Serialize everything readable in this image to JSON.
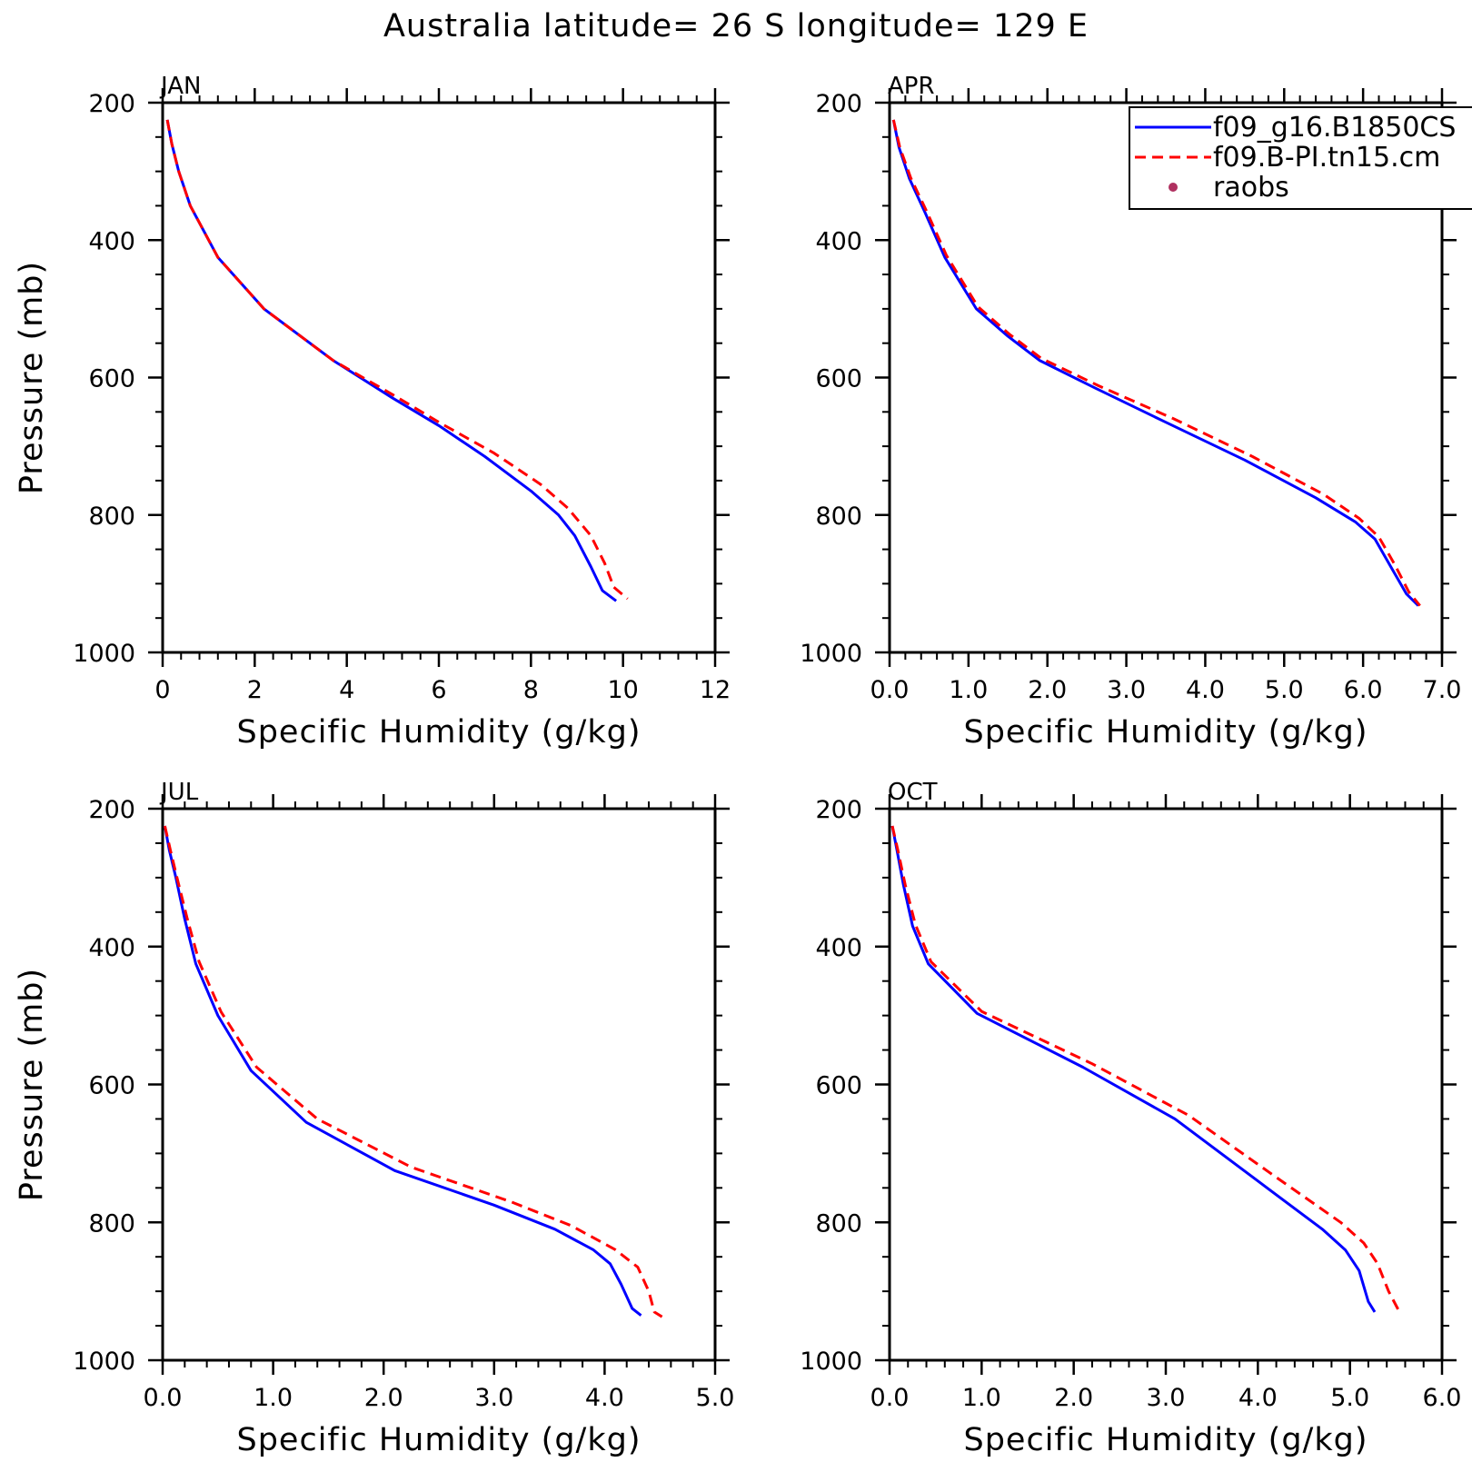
{
  "figure": {
    "title": "Australia  latitude= 26 S longitude= 129 E"
  },
  "colors": {
    "model1": "#0000ff",
    "model2": "#ff0000",
    "raobs": "#b03060"
  },
  "legend": {
    "placement": "top-right of APR panel",
    "entries": [
      {
        "label": "f09_g16.B1850CS",
        "style": "solid",
        "color": "#0000ff"
      },
      {
        "label": "f09.B-PI.tn15.cm",
        "style": "dashed",
        "color": "#ff0000"
      },
      {
        "label": "raobs",
        "style": "dot",
        "color": "#b03060"
      }
    ]
  },
  "chart_data": [
    {
      "type": "line",
      "panel": "JAN",
      "xlabel": "Specific Humidity (g/kg)",
      "ylabel": "Pressure (mb)",
      "xlim": [
        0,
        12
      ],
      "ylim": [
        200,
        1000
      ],
      "y_inverted": true,
      "xticks": [
        "0",
        "2",
        "4",
        "6",
        "8",
        "10",
        "12"
      ],
      "xtick_values": [
        0,
        2,
        4,
        6,
        8,
        10,
        12
      ],
      "yticks": [
        "200",
        "400",
        "600",
        "800",
        "1000"
      ],
      "ytick_values": [
        200,
        400,
        600,
        800,
        1000
      ],
      "series": [
        {
          "name": "f09_g16.B1850CS",
          "style": "solid",
          "points": [
            [
              0.1,
              225
            ],
            [
              0.2,
              260
            ],
            [
              0.35,
              300
            ],
            [
              0.6,
              350
            ],
            [
              1.2,
              425
            ],
            [
              2.2,
              500
            ],
            [
              3.7,
              575
            ],
            [
              5.0,
              630
            ],
            [
              6.0,
              670
            ],
            [
              7.0,
              715
            ],
            [
              8.0,
              765
            ],
            [
              8.6,
              800
            ],
            [
              8.95,
              830
            ],
            [
              9.3,
              875
            ],
            [
              9.55,
              910
            ],
            [
              9.85,
              925
            ]
          ]
        },
        {
          "name": "f09.B-PI.tn15.cm",
          "style": "dashed",
          "points": [
            [
              0.1,
              225
            ],
            [
              0.2,
              260
            ],
            [
              0.35,
              300
            ],
            [
              0.6,
              350
            ],
            [
              1.2,
              425
            ],
            [
              2.2,
              500
            ],
            [
              3.7,
              575
            ],
            [
              5.0,
              625
            ],
            [
              6.0,
              665
            ],
            [
              7.2,
              710
            ],
            [
              8.2,
              755
            ],
            [
              8.8,
              790
            ],
            [
              9.3,
              830
            ],
            [
              9.6,
              870
            ],
            [
              9.8,
              905
            ],
            [
              10.1,
              922
            ]
          ]
        },
        {
          "name": "raobs",
          "style": "dot",
          "points": []
        }
      ]
    },
    {
      "type": "line",
      "panel": "APR",
      "xlabel": "Specific Humidity (g/kg)",
      "ylabel": "",
      "xlim": [
        0,
        7
      ],
      "ylim": [
        200,
        1000
      ],
      "y_inverted": true,
      "xticks": [
        "0.0",
        "1.0",
        "2.0",
        "3.0",
        "4.0",
        "5.0",
        "6.0",
        "7.0"
      ],
      "xtick_values": [
        0,
        1,
        2,
        3,
        4,
        5,
        6,
        7
      ],
      "yticks": [
        "200",
        "400",
        "600",
        "800",
        "1000"
      ],
      "ytick_values": [
        200,
        400,
        600,
        800,
        1000
      ],
      "series": [
        {
          "name": "f09_g16.B1850CS",
          "style": "solid",
          "points": [
            [
              0.05,
              225
            ],
            [
              0.12,
              265
            ],
            [
              0.25,
              310
            ],
            [
              0.45,
              360
            ],
            [
              0.7,
              425
            ],
            [
              1.1,
              500
            ],
            [
              1.5,
              540
            ],
            [
              1.9,
              575
            ],
            [
              2.6,
              615
            ],
            [
              3.5,
              665
            ],
            [
              4.5,
              720
            ],
            [
              5.4,
              775
            ],
            [
              5.9,
              810
            ],
            [
              6.15,
              835
            ],
            [
              6.35,
              875
            ],
            [
              6.55,
              915
            ],
            [
              6.7,
              932
            ]
          ]
        },
        {
          "name": "f09.B-PI.tn15.cm",
          "style": "dashed",
          "points": [
            [
              0.05,
              225
            ],
            [
              0.13,
              265
            ],
            [
              0.27,
              310
            ],
            [
              0.47,
              358
            ],
            [
              0.72,
              422
            ],
            [
              1.12,
              497
            ],
            [
              1.52,
              537
            ],
            [
              1.92,
              572
            ],
            [
              2.65,
              612
            ],
            [
              3.6,
              660
            ],
            [
              4.6,
              715
            ],
            [
              5.5,
              770
            ],
            [
              5.95,
              805
            ],
            [
              6.2,
              832
            ],
            [
              6.4,
              872
            ],
            [
              6.58,
              912
            ],
            [
              6.72,
              932
            ]
          ]
        },
        {
          "name": "raobs",
          "style": "dot",
          "points": []
        }
      ]
    },
    {
      "type": "line",
      "panel": "JUL",
      "xlabel": "Specific Humidity (g/kg)",
      "ylabel": "Pressure (mb)",
      "xlim": [
        0,
        5
      ],
      "ylim": [
        200,
        1000
      ],
      "y_inverted": true,
      "xticks": [
        "0.0",
        "1.0",
        "2.0",
        "3.0",
        "4.0",
        "5.0"
      ],
      "xtick_values": [
        0,
        1,
        2,
        3,
        4,
        5
      ],
      "yticks": [
        "200",
        "400",
        "600",
        "800",
        "1000"
      ],
      "ytick_values": [
        200,
        400,
        600,
        800,
        1000
      ],
      "series": [
        {
          "name": "f09_g16.B1850CS",
          "style": "solid",
          "points": [
            [
              0.02,
              225
            ],
            [
              0.06,
              260
            ],
            [
              0.12,
              300
            ],
            [
              0.2,
              360
            ],
            [
              0.3,
              425
            ],
            [
              0.5,
              500
            ],
            [
              0.8,
              580
            ],
            [
              1.3,
              655
            ],
            [
              2.1,
              725
            ],
            [
              3.0,
              775
            ],
            [
              3.55,
              810
            ],
            [
              3.9,
              840
            ],
            [
              4.05,
              860
            ],
            [
              4.15,
              890
            ],
            [
              4.25,
              925
            ],
            [
              4.33,
              935
            ]
          ]
        },
        {
          "name": "f09.B-PI.tn15.cm",
          "style": "dashed",
          "points": [
            [
              0.02,
              225
            ],
            [
              0.07,
              260
            ],
            [
              0.13,
              300
            ],
            [
              0.22,
              358
            ],
            [
              0.33,
              422
            ],
            [
              0.53,
              495
            ],
            [
              0.85,
              575
            ],
            [
              1.4,
              650
            ],
            [
              2.25,
              720
            ],
            [
              3.15,
              770
            ],
            [
              3.7,
              805
            ],
            [
              4.1,
              840
            ],
            [
              4.3,
              865
            ],
            [
              4.4,
              900
            ],
            [
              4.45,
              930
            ],
            [
              4.52,
              937
            ]
          ]
        },
        {
          "name": "raobs",
          "style": "dot",
          "points": []
        }
      ]
    },
    {
      "type": "line",
      "panel": "OCT",
      "xlabel": "Specific Humidity (g/kg)",
      "ylabel": "",
      "xlim": [
        0,
        6
      ],
      "ylim": [
        200,
        1000
      ],
      "y_inverted": true,
      "xticks": [
        "0.0",
        "1.0",
        "2.0",
        "3.0",
        "4.0",
        "5.0",
        "6.0"
      ],
      "xtick_values": [
        0,
        1,
        2,
        3,
        4,
        5,
        6
      ],
      "yticks": [
        "200",
        "400",
        "600",
        "800",
        "1000"
      ],
      "ytick_values": [
        200,
        400,
        600,
        800,
        1000
      ],
      "series": [
        {
          "name": "f09_g16.B1850CS",
          "style": "solid",
          "points": [
            [
              0.03,
              225
            ],
            [
              0.08,
              260
            ],
            [
              0.15,
              310
            ],
            [
              0.25,
              370
            ],
            [
              0.42,
              425
            ],
            [
              0.95,
              497
            ],
            [
              2.1,
              575
            ],
            [
              3.1,
              650
            ],
            [
              4.0,
              740
            ],
            [
              4.7,
              810
            ],
            [
              4.95,
              840
            ],
            [
              5.1,
              870
            ],
            [
              5.2,
              915
            ],
            [
              5.27,
              930
            ]
          ]
        },
        {
          "name": "f09.B-PI.tn15.cm",
          "style": "dashed",
          "points": [
            [
              0.03,
              225
            ],
            [
              0.09,
              260
            ],
            [
              0.17,
              310
            ],
            [
              0.28,
              368
            ],
            [
              0.45,
              422
            ],
            [
              1.0,
              494
            ],
            [
              2.2,
              570
            ],
            [
              3.25,
              645
            ],
            [
              4.15,
              730
            ],
            [
              4.9,
              800
            ],
            [
              5.15,
              830
            ],
            [
              5.3,
              860
            ],
            [
              5.42,
              900
            ],
            [
              5.55,
              933
            ]
          ]
        },
        {
          "name": "raobs",
          "style": "dot",
          "points": []
        }
      ]
    }
  ]
}
